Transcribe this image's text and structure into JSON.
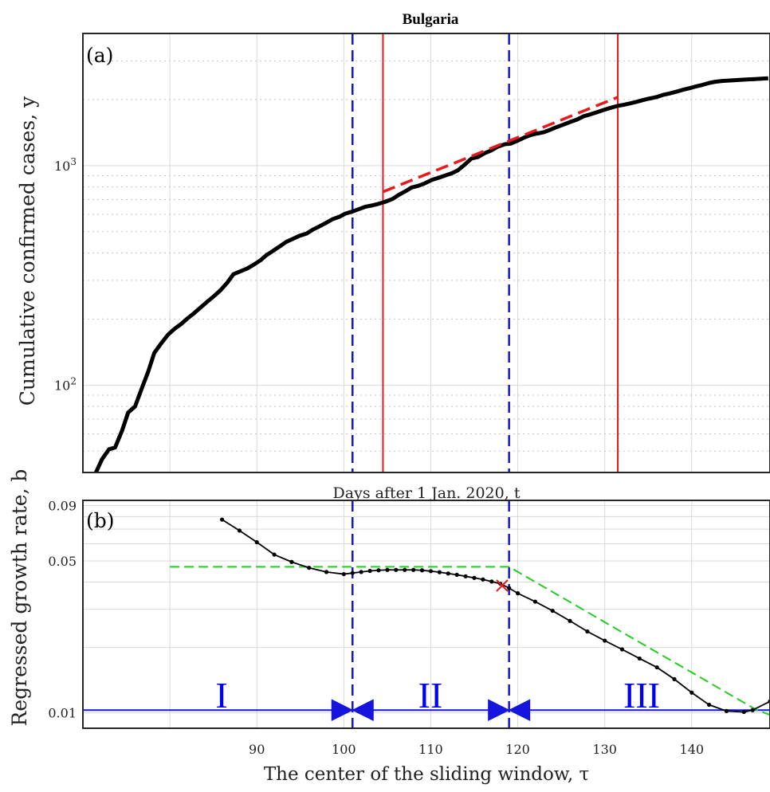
{
  "title": "Bulgaria",
  "panel_a_label": "(a)",
  "panel_b_label": "(b)",
  "ylabel_top": "Cumulative confirmed cases, y",
  "ylabel_bottom": "Regressed growth rate, b",
  "xlabel_top": "Days after 1 Jan. 2020, t",
  "xlabel_bottom": "The center of the sliding window, τ",
  "phase_labels": [
    "I",
    "II",
    "III"
  ],
  "colors": {
    "data": "#000000",
    "fit": "#e8191c",
    "window": "#e8191c",
    "phase_boundary": "#1515dd",
    "trend": "#22cc22",
    "baseline": "#1515dd",
    "marker": "#e8191c"
  },
  "chart_data": [
    {
      "type": "line",
      "panel": "(a)",
      "title": "Bulgaria",
      "ylabel": "Cumulative confirmed cases, y",
      "xlabel": "Days after 1 Jan. 2020, t",
      "yscale": "log",
      "xlim": [
        70,
        149
      ],
      "ylim": [
        40,
        4000
      ],
      "ytick_labels": [
        "10^2",
        "10^3"
      ],
      "grid": true,
      "series": [
        {
          "x": [
            71.5,
            72.2,
            73,
            73.7,
            74.5,
            75.2,
            76,
            76.7,
            77.5,
            78.2,
            79,
            79.8,
            80.5,
            81.3,
            82,
            82.8,
            83.6,
            84.3,
            85.1,
            85.8,
            86.6,
            87.3,
            88.1,
            88.9,
            89.6,
            90.4,
            91.1,
            91.9,
            92.6,
            93.4,
            94.2,
            94.9,
            95.7,
            96.4,
            97.2,
            98,
            98.7,
            99.5,
            100.2,
            101,
            101.8,
            102.5,
            103.3,
            104,
            104.8,
            105.6,
            106.3,
            107.1,
            107.8,
            108.6,
            109.3,
            110.1,
            110.9,
            111.6,
            112.4,
            113.1,
            113.9,
            114.7,
            115.4,
            116.2,
            116.9,
            117.7,
            118.5,
            119.2,
            120,
            120.7,
            121.5,
            122.2,
            123,
            123.8,
            124.5,
            125.3,
            126,
            126.8,
            127.6,
            128.3,
            129.1,
            129.8,
            130.6,
            131.4,
            132.1,
            132.9,
            133.6,
            134.4,
            135.1,
            135.9,
            136.7,
            137.4,
            138.2,
            138.9,
            139.7,
            140.4,
            141.2,
            142,
            142.7,
            143.5,
            144.2,
            145,
            145.7,
            146.5,
            147.3,
            148,
            148.8
          ],
          "y": [
            40,
            46,
            51,
            52,
            62,
            75,
            80,
            95,
            115,
            140,
            155,
            170,
            180,
            190,
            201,
            213,
            227,
            240,
            255,
            270,
            293,
            320,
            330,
            340,
            353,
            370,
            391,
            410,
            428,
            450,
            465,
            479,
            490,
            510,
            529,
            550,
            570,
            585,
            605,
            618,
            635,
            650,
            659,
            670,
            685,
            705,
            735,
            765,
            795,
            810,
            830,
            860,
            880,
            900,
            923,
            951,
            1011,
            1079,
            1093,
            1140,
            1170,
            1220,
            1251,
            1260,
            1300,
            1340,
            1379,
            1400,
            1420,
            1460,
            1500,
            1540,
            1580,
            1620,
            1680,
            1710,
            1750,
            1790,
            1830,
            1868,
            1890,
            1920,
            1950,
            1990,
            2020,
            2050,
            2100,
            2130,
            2170,
            2210,
            2250,
            2290,
            2330,
            2380,
            2410,
            2430,
            2440,
            2450,
            2460,
            2470,
            2480,
            2490,
            2500
          ]
        },
        {
          "name": "fit",
          "x": [
            104.5,
            131.5
          ],
          "y": [
            760,
            2050
          ]
        }
      ],
      "vertical_lines": {
        "fit_window": [
          104.5,
          131.5
        ],
        "phase_boundaries": [
          101,
          119
        ]
      }
    },
    {
      "type": "line",
      "panel": "(b)",
      "ylabel": "Regressed growth rate, b",
      "xlabel": "The center of the sliding window, τ",
      "yscale": "log",
      "xlim": [
        70,
        149
      ],
      "ylim": [
        0.0085,
        0.095
      ],
      "xticks": [
        90,
        100,
        110,
        120,
        130,
        140
      ],
      "ytick_labels": [
        "0.01",
        "0.05",
        "0.09"
      ],
      "grid": true,
      "series": [
        {
          "x": [
            86,
            88,
            90,
            92,
            94,
            96,
            98,
            100,
            101,
            102,
            103,
            104,
            105,
            106,
            107,
            108,
            109,
            110,
            111,
            112,
            113,
            114,
            115,
            116,
            117,
            118,
            119,
            120,
            122,
            124,
            126,
            128,
            130,
            132,
            134,
            136,
            138,
            140,
            142,
            144,
            146,
            147,
            149
          ],
          "y": [
            0.0775,
            0.069,
            0.061,
            0.0535,
            0.0495,
            0.0465,
            0.0445,
            0.0435,
            0.044,
            0.0445,
            0.045,
            0.0453,
            0.0455,
            0.0455,
            0.0455,
            0.0455,
            0.0453,
            0.0449,
            0.0444,
            0.0438,
            0.0432,
            0.0425,
            0.0418,
            0.0411,
            0.0402,
            0.0393,
            0.0375,
            0.0355,
            0.0325,
            0.0295,
            0.0265,
            0.0237,
            0.0215,
            0.0196,
            0.0178,
            0.0162,
            0.0143,
            0.0124,
            0.0109,
            0.0102,
            0.0101,
            0.0103,
            0.0113
          ]
        },
        {
          "name": "trend",
          "x": [
            80,
            119,
            147.5,
            149
          ],
          "y": [
            0.047,
            0.047,
            0.0103,
            0.0098
          ]
        },
        {
          "name": "baseline",
          "x": [
            70,
            149
          ],
          "y": [
            0.0103,
            0.0103
          ]
        },
        {
          "name": "marker",
          "x": [
            118.2
          ],
          "y": [
            0.0385
          ]
        }
      ],
      "phase_boundaries": [
        101,
        119
      ]
    }
  ]
}
